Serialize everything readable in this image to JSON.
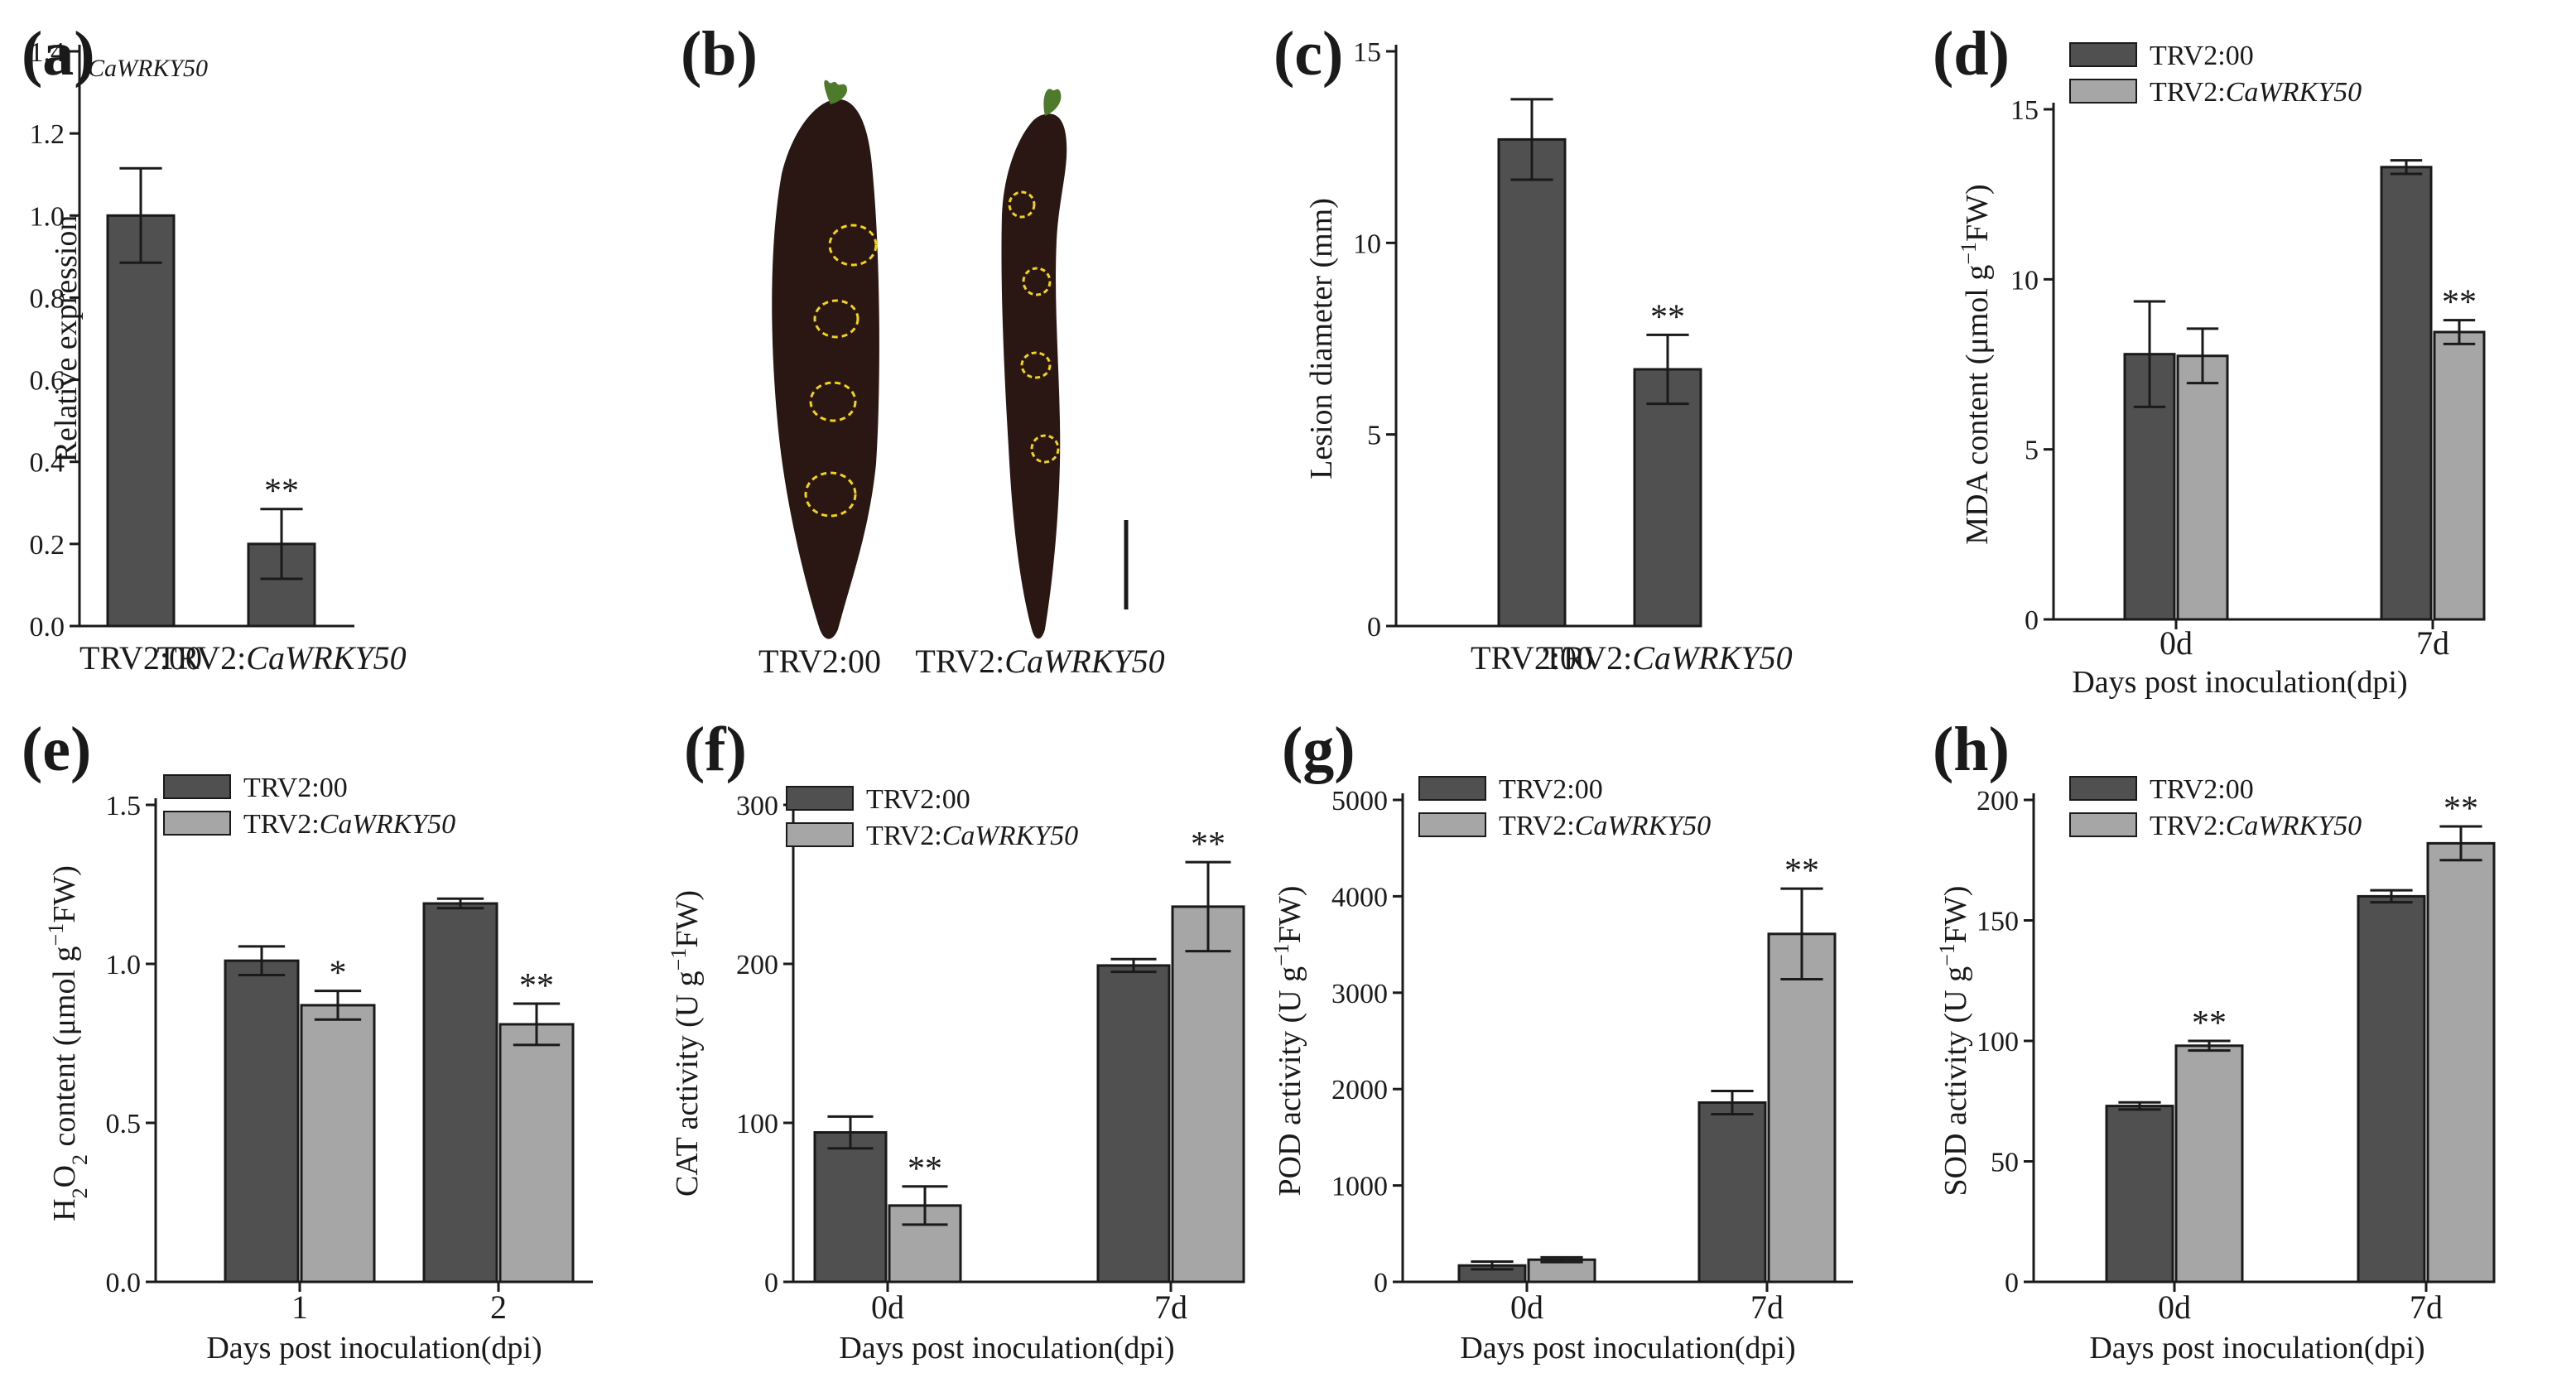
{
  "colors": {
    "dark": "#505050",
    "light": "#a6a6a6",
    "fruit": "#2a1612",
    "circle": "#f2d21a",
    "stem": "#4e7a2c"
  },
  "legend": {
    "control": "TRV2:00",
    "silenced_prefix": "TRV2:",
    "silenced_gene": "CaWRKY50"
  },
  "x_title": "Days post inoculation(dpi)",
  "panel_b": {
    "letter": "(b)",
    "left_label": "TRV2:00",
    "right_label_prefix": "TRV2:",
    "right_label_gene": "CaWRKY50"
  },
  "chart_data": [
    {
      "id": "a",
      "letter": "(a)",
      "type": "bar",
      "gene_label": "CaWRKY50",
      "ylabel": "Relative expression",
      "ylim": [
        0,
        1.4
      ],
      "yticks": [
        "0.0",
        "0.2",
        "0.4",
        "0.6",
        "0.8",
        "1.0",
        "1.2",
        "1.4"
      ],
      "categories": [
        {
          "prefix": "TRV2:00",
          "italic": ""
        },
        {
          "prefix": "TRV2:",
          "italic": "CaWRKY50"
        }
      ],
      "series": [
        {
          "name": "expression",
          "color": "dark",
          "values": [
            1.0,
            0.2
          ],
          "errors": [
            0.115,
            0.085
          ],
          "sig": [
            "",
            "**"
          ]
        }
      ]
    },
    {
      "id": "c",
      "letter": "(c)",
      "type": "bar",
      "ylabel": "Lesion diameter (mm)",
      "ylim": [
        0,
        15
      ],
      "yticks": [
        "0",
        "5",
        "10",
        "15"
      ],
      "categories": [
        {
          "prefix": "TRV2:00",
          "italic": ""
        },
        {
          "prefix": "TRV2:",
          "italic": "CaWRKY50"
        }
      ],
      "series": [
        {
          "name": "lesion",
          "color": "dark",
          "values": [
            12.7,
            6.7
          ],
          "errors": [
            1.05,
            0.9
          ],
          "sig": [
            "",
            "**"
          ]
        }
      ]
    },
    {
      "id": "d",
      "letter": "(d)",
      "type": "bar",
      "legend": true,
      "ylabel_prefix": "MDA content (μmol g",
      "ylabel_sup": "−1",
      "ylabel_suffix": "FW)",
      "ylim": [
        0,
        15
      ],
      "yticks": [
        "0",
        "5",
        "10",
        "15"
      ],
      "categories": [
        "0d",
        "7d"
      ],
      "series": [
        {
          "name": "TRV2:00",
          "color": "dark",
          "values": [
            7.8,
            13.3
          ],
          "errors": [
            1.55,
            0.2
          ],
          "sig": [
            "",
            ""
          ]
        },
        {
          "name": "TRV2:CaWRKY50",
          "color": "light",
          "values": [
            7.75,
            8.45
          ],
          "errors": [
            0.8,
            0.35
          ],
          "sig": [
            "",
            "**"
          ]
        }
      ]
    },
    {
      "id": "e",
      "letter": "(e)",
      "type": "bar",
      "legend": true,
      "ylabel_prefix": "H",
      "ylabel_sub": "2",
      "ylabel_mid": "O",
      "ylabel_sub2": "2",
      "ylabel_prefix2": " content (μmol g",
      "ylabel_sup": "−1",
      "ylabel_suffix": "FW)",
      "ylim": [
        0,
        1.5
      ],
      "yticks": [
        "0.0",
        "0.5",
        "1.0",
        "1.5"
      ],
      "categories": [
        "1",
        "2"
      ],
      "series": [
        {
          "name": "TRV2:00",
          "color": "dark",
          "values": [
            1.01,
            1.19
          ],
          "errors": [
            0.045,
            0.015
          ],
          "sig": [
            "",
            ""
          ]
        },
        {
          "name": "TRV2:CaWRKY50",
          "color": "light",
          "values": [
            0.87,
            0.81
          ],
          "errors": [
            0.045,
            0.065
          ],
          "sig": [
            "*",
            "**"
          ]
        }
      ]
    },
    {
      "id": "f",
      "letter": "(f)",
      "type": "bar",
      "legend": true,
      "ylabel_prefix": "CAT activity (U g",
      "ylabel_sup": "−1",
      "ylabel_suffix": "FW)",
      "ylim": [
        0,
        300
      ],
      "yticks": [
        "0",
        "100",
        "200",
        "300"
      ],
      "categories": [
        "0d",
        "7d"
      ],
      "series": [
        {
          "name": "TRV2:00",
          "color": "dark",
          "values": [
            94,
            199
          ],
          "errors": [
            10,
            4
          ],
          "sig": [
            "",
            ""
          ]
        },
        {
          "name": "TRV2:CaWRKY50",
          "color": "light",
          "values": [
            48,
            236
          ],
          "errors": [
            12,
            28
          ],
          "sig": [
            "**",
            "**"
          ]
        }
      ]
    },
    {
      "id": "g",
      "letter": "(g)",
      "type": "bar",
      "legend": true,
      "ylabel_prefix": "POD activity (U g",
      "ylabel_sup": "−1",
      "ylabel_suffix": "FW)",
      "ylim": [
        0,
        5000
      ],
      "yticks": [
        "0",
        "1000",
        "2000",
        "3000",
        "4000",
        "5000"
      ],
      "categories": [
        "0d",
        "7d"
      ],
      "series": [
        {
          "name": "TRV2:00",
          "color": "dark",
          "values": [
            170,
            1860
          ],
          "errors": [
            40,
            120
          ],
          "sig": [
            "",
            ""
          ]
        },
        {
          "name": "TRV2:CaWRKY50",
          "color": "light",
          "values": [
            230,
            3610
          ],
          "errors": [
            25,
            470
          ],
          "sig": [
            "",
            "**"
          ]
        }
      ]
    },
    {
      "id": "h",
      "letter": "(h)",
      "type": "bar",
      "legend": true,
      "ylabel_prefix": "SOD activity (U g",
      "ylabel_sup": "−1",
      "ylabel_suffix": "FW)",
      "ylim": [
        0,
        200
      ],
      "yticks": [
        "0",
        "50",
        "100",
        "150",
        "200"
      ],
      "categories": [
        "0d",
        "7d"
      ],
      "series": [
        {
          "name": "TRV2:00",
          "color": "dark",
          "values": [
            73,
            160
          ],
          "errors": [
            1.5,
            2.5
          ],
          "sig": [
            "",
            ""
          ]
        },
        {
          "name": "TRV2:CaWRKY50",
          "color": "light",
          "values": [
            98,
            182
          ],
          "errors": [
            2,
            7
          ],
          "sig": [
            "**",
            "**"
          ]
        }
      ]
    }
  ]
}
